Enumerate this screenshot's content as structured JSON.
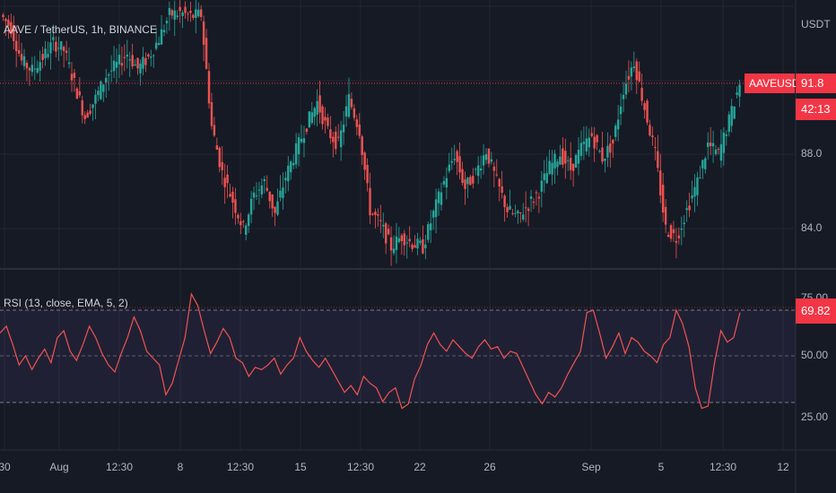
{
  "header": {
    "symbol_title": "AAVE / TetherUS, 1h, BINANCE"
  },
  "price_pane": {
    "currency": "USDT",
    "price_ticks": [
      "88.0",
      "84.0"
    ],
    "last_price": {
      "symbol": "AAVEUSDT",
      "value": "91.8",
      "countdown": "42:13"
    }
  },
  "rsi_pane": {
    "title": "RSI (13, close, EMA, 5, 2)",
    "rsi_ticks": [
      "75.00",
      "50.00",
      "25.00"
    ],
    "current_value": "69.82"
  },
  "time_axis": {
    "labels": [
      "30",
      "Aug",
      "12:30",
      "8",
      "12:30",
      "15",
      "12:30",
      "22",
      "26",
      "Sep",
      "5",
      "12:30",
      "12"
    ]
  },
  "colors": {
    "background": "#161a25",
    "up_candle": "#26a69a",
    "down_candle": "#ef5350",
    "rsi_line": "#f0544f",
    "rsi_band_fill": "#7e57c2",
    "last_price_tag": "#f23645"
  },
  "chart_data": [
    {
      "type": "candlestick",
      "title": "AAVE / TetherUS, 1h, BINANCE",
      "ylabel": "USDT",
      "ylim": [
        82,
        96
      ],
      "x_tick_labels": [
        "30",
        "Aug",
        "12:30",
        "8",
        "12:30",
        "15",
        "12:30",
        "22",
        "26",
        "Sep",
        "5",
        "12:30",
        "12"
      ],
      "close_series": [
        95.5,
        94.8,
        93.0,
        92.5,
        93.2,
        94.0,
        93.6,
        91.8,
        90.0,
        91.0,
        92.2,
        92.8,
        93.4,
        92.6,
        93.2,
        94.2,
        95.5,
        95.6,
        95.4,
        95.5,
        89.5,
        87.0,
        85.5,
        84.0,
        85.8,
        86.5,
        84.8,
        86.8,
        88.2,
        89.6,
        90.8,
        89.2,
        88.5,
        91.0,
        89.3,
        85.0,
        84.2,
        83.0,
        83.6,
        83.2,
        83.0,
        84.8,
        86.5,
        88.0,
        86.2,
        87.0,
        88.2,
        86.5,
        85.0,
        84.6,
        85.3,
        86.0,
        87.3,
        88.0,
        87.2,
        88.3,
        89.0,
        87.8,
        88.6,
        91.5,
        93.0,
        90.5,
        88.0,
        84.0,
        83.5,
        85.0,
        86.5,
        88.5,
        88.0,
        89.8,
        91.8
      ],
      "last_price": 91.8
    },
    {
      "type": "line",
      "title": "RSI (13, close, EMA, 5, 2)",
      "ylim": [
        20,
        80
      ],
      "bands": [
        30,
        50,
        70
      ],
      "x_tick_labels": [
        "30",
        "Aug",
        "12:30",
        "8",
        "12:30",
        "15",
        "12:30",
        "22",
        "26",
        "Sep",
        "5",
        "12:30",
        "12"
      ],
      "series": [
        {
          "values": [
            60,
            63,
            55,
            46,
            50,
            44,
            49,
            53,
            47,
            58,
            61,
            52,
            48,
            55,
            63,
            58,
            51,
            46,
            43,
            51,
            58,
            67,
            61,
            52,
            49,
            46,
            33,
            38,
            48,
            58,
            77,
            72,
            61,
            51,
            56,
            62,
            58,
            49,
            47,
            41,
            45,
            44,
            46,
            49,
            42,
            46,
            49,
            58,
            52,
            48,
            45,
            49,
            44,
            39,
            34,
            37,
            33,
            41,
            38,
            36,
            30,
            34,
            36,
            27,
            29,
            40,
            46,
            55,
            60,
            55,
            52,
            57,
            54,
            51,
            49,
            54,
            57,
            53,
            54,
            49,
            52,
            51,
            45,
            39,
            33,
            29,
            34,
            32,
            36,
            42,
            47,
            52,
            69,
            70,
            60,
            49,
            54,
            60,
            51,
            58,
            56,
            52,
            50,
            47,
            55,
            58,
            70,
            64,
            54,
            36,
            27,
            28,
            47,
            61,
            56,
            58,
            69
          ]
        }
      ],
      "current_value": 69.82
    }
  ]
}
